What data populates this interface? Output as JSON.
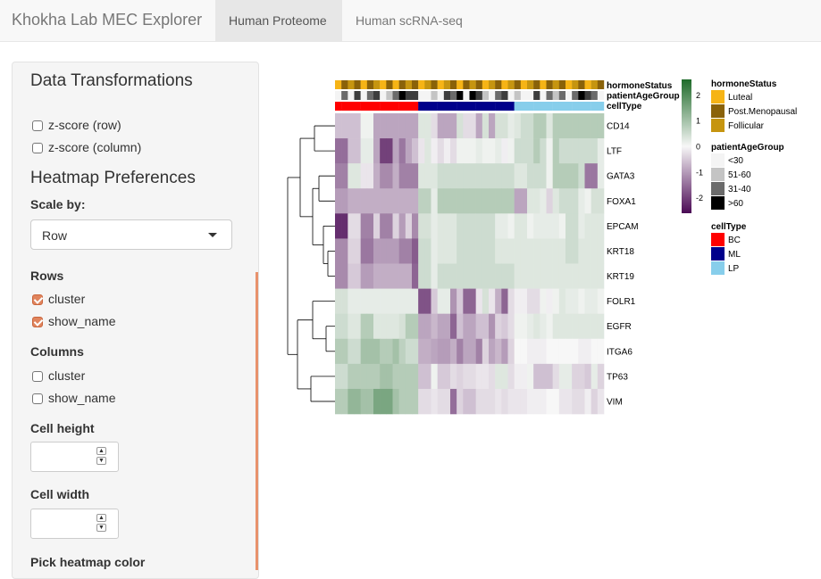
{
  "navbar": {
    "brand": "Khokha Lab MEC Explorer",
    "tabs": [
      {
        "label": "Human Proteome",
        "active": true
      },
      {
        "label": "Human scRNA-seq",
        "active": false
      }
    ]
  },
  "sidebar": {
    "transform_title": "Data Transformations",
    "zscore_row": {
      "label": "z-score (row)",
      "checked": false
    },
    "zscore_col": {
      "label": "z-score (column)",
      "checked": false
    },
    "heatmap_title": "Heatmap Preferences",
    "scale_label": "Scale by:",
    "scale_value": "Row",
    "rows_label": "Rows",
    "rows_cluster": {
      "label": "cluster",
      "checked": true
    },
    "rows_show_name": {
      "label": "show_name",
      "checked": true
    },
    "columns_label": "Columns",
    "cols_cluster": {
      "label": "cluster",
      "checked": false
    },
    "cols_show_name": {
      "label": "show_name",
      "checked": false
    },
    "cell_height_label": "Cell height",
    "cell_width_label": "Cell width",
    "color_label": "Pick heatmap color"
  },
  "heatmap": {
    "annotation_labels": [
      "hormoneStatus",
      "patientAgeGroup",
      "cellType"
    ],
    "genes": [
      "CD14",
      "LTF",
      "GATA3",
      "FOXA1",
      "EPCAM",
      "KRT18",
      "KRT19",
      "FOLR1",
      "EGFR",
      "ITGA6",
      "TP63",
      "VIM"
    ],
    "colorbar": {
      "ticks": [
        "2",
        "1",
        "0",
        "-1",
        "-2"
      ],
      "range": [
        -2.6,
        2.6
      ],
      "low": "#4b0a55",
      "mid": "#f7f7f7",
      "high": "#1f6b2a"
    },
    "hormone_row": [
      "L",
      "P",
      "F",
      "P",
      "L",
      "P",
      "F",
      "L",
      "P",
      "L",
      "P",
      "F",
      "P",
      "L",
      "F",
      "P",
      "L",
      "F",
      "P",
      "L",
      "P",
      "F",
      "P",
      "L",
      "F",
      "P",
      "L",
      "F",
      "P",
      "L",
      "F",
      "P",
      "L",
      "P",
      "F",
      "P",
      "L",
      "F",
      "P",
      "L",
      "F",
      "P"
    ],
    "age_row": [
      "W",
      "G",
      "W",
      "D",
      "W",
      "G",
      "D",
      "W",
      "L",
      "G",
      "B",
      "D",
      "D",
      "W",
      "W",
      "L",
      "W",
      "D",
      "G",
      "B",
      "W",
      "B",
      "D",
      "L",
      "W",
      "G",
      "D",
      "W",
      "L",
      "W",
      "W",
      "D",
      "W",
      "G",
      "L",
      "G",
      "W",
      "G",
      "B",
      "D",
      "G",
      "W"
    ],
    "celltype_row": [
      "BC",
      "BC",
      "BC",
      "BC",
      "BC",
      "BC",
      "BC",
      "BC",
      "BC",
      "BC",
      "BC",
      "BC",
      "BC",
      "ML",
      "ML",
      "ML",
      "ML",
      "ML",
      "ML",
      "ML",
      "ML",
      "ML",
      "ML",
      "ML",
      "ML",
      "ML",
      "ML",
      "ML",
      "LP",
      "LP",
      "LP",
      "LP",
      "LP",
      "LP",
      "LP",
      "LP",
      "LP",
      "LP",
      "LP",
      "LP",
      "LP",
      "LP"
    ],
    "values": [
      [
        -0.6,
        -0.6,
        -0.6,
        -0.6,
        0.1,
        0.1,
        -0.9,
        -0.9,
        -0.9,
        -0.9,
        -0.9,
        -0.9,
        -0.9,
        0.3,
        0.3,
        -0.3,
        -0.9,
        -0.9,
        -0.9,
        0.4,
        -0.3,
        -0.3,
        -0.9,
        0.4,
        -0.9,
        0.4,
        0.4,
        0.2,
        0.3,
        0.5,
        0.5,
        0.8,
        0.8,
        0.3,
        0.8,
        0.8,
        0.8,
        0.8,
        0.8,
        0.8,
        0.8,
        0.8
      ],
      [
        -1.5,
        -1.5,
        -0.6,
        -0.6,
        0.2,
        0.2,
        -0.9,
        -2.0,
        -2.0,
        -0.9,
        -1.4,
        -0.9,
        -0.6,
        -0.2,
        0.3,
        -0.1,
        -0.3,
        -0.1,
        -0.3,
        0.1,
        0.1,
        0.1,
        0.2,
        0.1,
        0.1,
        0.2,
        -0.1,
        0.1,
        0.5,
        0.5,
        0.5,
        0.8,
        0.5,
        0.1,
        0.8,
        0.5,
        0.5,
        0.5,
        0.5,
        0.5,
        0.5,
        0.2
      ],
      [
        -1.3,
        -1.3,
        0.3,
        0.3,
        -0.2,
        -0.2,
        -0.8,
        -1.2,
        -1.2,
        -0.8,
        -1.3,
        -1.3,
        -1.3,
        0.3,
        0.3,
        0.3,
        0.5,
        0.5,
        0.5,
        0.5,
        0.5,
        0.5,
        0.5,
        0.5,
        0.5,
        0.5,
        0.5,
        0.5,
        0.3,
        0.3,
        0.5,
        0.5,
        0.5,
        0.1,
        0.8,
        0.8,
        0.8,
        0.8,
        0.5,
        -1.4,
        -1.4,
        0.2
      ],
      [
        -1.0,
        -1.0,
        -0.8,
        -0.8,
        -0.8,
        -0.8,
        -0.8,
        -0.8,
        -0.8,
        -0.8,
        -0.8,
        -0.8,
        -0.8,
        0.7,
        0.7,
        0.2,
        0.8,
        0.8,
        0.8,
        0.8,
        0.8,
        0.8,
        0.8,
        0.8,
        0.8,
        0.8,
        0.8,
        0.8,
        -0.9,
        -0.9,
        0.3,
        0.3,
        0.2,
        -0.4,
        0.3,
        0.5,
        0.5,
        0.5,
        0.2,
        0.1,
        0.4,
        0.4
      ],
      [
        -2.2,
        -2.2,
        -0.3,
        -0.3,
        -1.3,
        -1.3,
        -0.4,
        -1.3,
        -1.3,
        -0.4,
        -1.0,
        -0.4,
        -1.2,
        0.4,
        0.4,
        0.2,
        0.3,
        0.3,
        0.3,
        0.5,
        0.5,
        0.5,
        0.5,
        0.5,
        0.5,
        0.2,
        0.2,
        0.1,
        0.3,
        0.3,
        0.1,
        0.2,
        0.2,
        0.2,
        0.2,
        0.1,
        0.5,
        0.5,
        0.2,
        0.3,
        0.3,
        0.3
      ],
      [
        -1.2,
        -1.2,
        -0.4,
        -0.4,
        -1.4,
        -1.4,
        -1.0,
        -1.0,
        -1.0,
        -1.0,
        -1.3,
        -1.3,
        -1.7,
        0.5,
        0.5,
        0.2,
        0.3,
        0.3,
        0.3,
        0.5,
        0.5,
        0.5,
        0.5,
        0.5,
        0.5,
        0.3,
        0.3,
        0.3,
        0.3,
        0.3,
        0.3,
        0.3,
        0.3,
        0.3,
        0.3,
        0.3,
        0.5,
        0.5,
        0.3,
        0.3,
        0.3,
        0.3
      ],
      [
        -1.2,
        -1.2,
        -0.5,
        -0.5,
        -1.0,
        -1.0,
        -0.8,
        -0.8,
        -0.8,
        -0.8,
        -0.8,
        -0.8,
        -1.6,
        0.5,
        0.5,
        0.2,
        0.5,
        0.5,
        0.5,
        0.5,
        0.5,
        0.5,
        0.5,
        0.5,
        0.5,
        0.5,
        0.5,
        0.5,
        0.3,
        0.3,
        0.3,
        0.3,
        0.3,
        0.3,
        0.3,
        0.3,
        0.3,
        0.3,
        0.3,
        0.3,
        0.3,
        0.3
      ],
      [
        0.4,
        0.4,
        0.2,
        0.2,
        0.2,
        0.2,
        0.2,
        0.2,
        0.2,
        0.2,
        0.2,
        0.2,
        0.2,
        -1.8,
        -1.8,
        -0.5,
        0.2,
        0.2,
        -1.1,
        -0.5,
        -1.6,
        -1.6,
        -0.2,
        0.4,
        -0.2,
        -0.8,
        -1.6,
        -0.3,
        -0.1,
        -0.1,
        -0.3,
        -0.3,
        0.1,
        -0.1,
        0.1,
        0.3,
        0.2,
        0.2,
        0.1,
        0.2,
        0.2,
        0.1
      ],
      [
        0.5,
        0.5,
        0.3,
        0.3,
        0.8,
        0.8,
        0.3,
        0.3,
        0.3,
        0.3,
        0.4,
        0.8,
        0.8,
        -0.9,
        -0.9,
        -0.7,
        -0.9,
        -0.9,
        -1.6,
        -0.6,
        -0.9,
        -0.9,
        -0.6,
        -0.6,
        -1.1,
        -0.4,
        -0.5,
        -0.3,
        0.1,
        0.1,
        0.2,
        0.3,
        0.2,
        0.1,
        0.3,
        0.3,
        0.3,
        0.3,
        0.3,
        0.3,
        0.3,
        0.3
      ],
      [
        0.8,
        0.8,
        0.5,
        0.5,
        1.0,
        1.0,
        1.0,
        0.8,
        0.8,
        1.0,
        0.7,
        0.5,
        0.5,
        -0.8,
        -0.8,
        -0.9,
        -1.0,
        -1.0,
        -0.8,
        -1.3,
        -0.9,
        -0.9,
        -1.3,
        -0.4,
        -0.9,
        -0.7,
        -1.0,
        -0.4,
        0.0,
        0.0,
        -0.1,
        -0.1,
        -0.1,
        0.0,
        0.0,
        0.0,
        0.0,
        0.0,
        -0.1,
        -0.1,
        0.0,
        0.0
      ],
      [
        0.5,
        0.5,
        0.8,
        0.8,
        0.8,
        0.8,
        0.8,
        1.0,
        1.0,
        0.8,
        0.8,
        0.8,
        0.8,
        -0.6,
        -0.6,
        0.1,
        -0.5,
        -0.5,
        -0.3,
        -0.4,
        -0.3,
        -0.3,
        -0.2,
        -0.2,
        -0.3,
        0.3,
        0.3,
        -0.3,
        -0.1,
        -0.1,
        0.1,
        -0.6,
        -0.6,
        -0.6,
        -0.3,
        0.2,
        0.2,
        -0.4,
        -0.4,
        -0.5,
        0.2,
        -0.4
      ],
      [
        0.8,
        0.8,
        1.2,
        1.2,
        1.0,
        1.0,
        1.5,
        1.5,
        1.5,
        1.0,
        0.8,
        0.8,
        0.8,
        -0.3,
        -0.3,
        -0.2,
        -0.3,
        -0.3,
        -1.5,
        -0.4,
        -0.6,
        -0.6,
        -0.3,
        -0.3,
        -0.3,
        -0.2,
        -0.3,
        -0.2,
        -0.2,
        -0.2,
        -0.1,
        -0.1,
        -0.1,
        0.0,
        0.0,
        -0.2,
        -0.2,
        -0.3,
        -0.3,
        -0.1,
        -0.4,
        -0.2
      ]
    ],
    "legends": {
      "hormone": {
        "title": "hormoneStatus",
        "items": [
          {
            "key": "L",
            "label": "Luteal",
            "color": "#f6b416"
          },
          {
            "key": "P",
            "label": "Post.Menopausal",
            "color": "#8a6209"
          },
          {
            "key": "F",
            "label": "Follicular",
            "color": "#c69510"
          }
        ]
      },
      "age": {
        "title": "patientAgeGroup",
        "items": [
          {
            "key": "W",
            "label": "<30",
            "color": "#f4f4f4"
          },
          {
            "key": "L",
            "label": "51-60",
            "color": "#c4c4c4"
          },
          {
            "key": "G",
            "label": "31-40",
            "color": "#6b6b6b"
          },
          {
            "key": "B",
            "label": ">60",
            "color": "#000000"
          },
          {
            "key": "D",
            "label": "",
            "color": "#3d3d3d"
          }
        ]
      },
      "cell": {
        "title": "cellType",
        "items": [
          {
            "key": "BC",
            "label": "BC",
            "color": "#ff0000"
          },
          {
            "key": "ML",
            "label": "ML",
            "color": "#00008b"
          },
          {
            "key": "LP",
            "label": "LP",
            "color": "#87ceeb"
          }
        ]
      }
    }
  }
}
